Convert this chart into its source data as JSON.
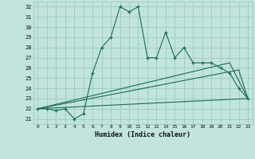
{
  "xlabel": "Humidex (Indice chaleur)",
  "bg_color": "#c2e4dc",
  "grid_color": "#9ecec6",
  "line_color": "#1a6b5a",
  "xlim": [
    -0.5,
    23.5
  ],
  "ylim": [
    20.5,
    32.5
  ],
  "xticks": [
    0,
    1,
    2,
    3,
    4,
    5,
    6,
    7,
    8,
    9,
    10,
    11,
    12,
    13,
    14,
    15,
    16,
    17,
    18,
    19,
    20,
    21,
    22,
    23
  ],
  "yticks": [
    21,
    22,
    23,
    24,
    25,
    26,
    27,
    28,
    29,
    30,
    31,
    32
  ],
  "series1_x": [
    0,
    1,
    2,
    3,
    4,
    5,
    6,
    7,
    8,
    9,
    10,
    11,
    12,
    13,
    14,
    15,
    16,
    17,
    18,
    19,
    20,
    21,
    22,
    23
  ],
  "series1_y": [
    22,
    22,
    21.8,
    22,
    21,
    21.5,
    25.5,
    28,
    29,
    32,
    31.5,
    32,
    27,
    27,
    29.5,
    27,
    28,
    26.5,
    26.5,
    26.5,
    26,
    25.5,
    24,
    23
  ],
  "series2_x": [
    0,
    23
  ],
  "series2_y": [
    22,
    23
  ],
  "series3_x": [
    0,
    22,
    23
  ],
  "series3_y": [
    22,
    25.8,
    23
  ],
  "series4_x": [
    0,
    21,
    23
  ],
  "series4_y": [
    22,
    26.5,
    23
  ]
}
